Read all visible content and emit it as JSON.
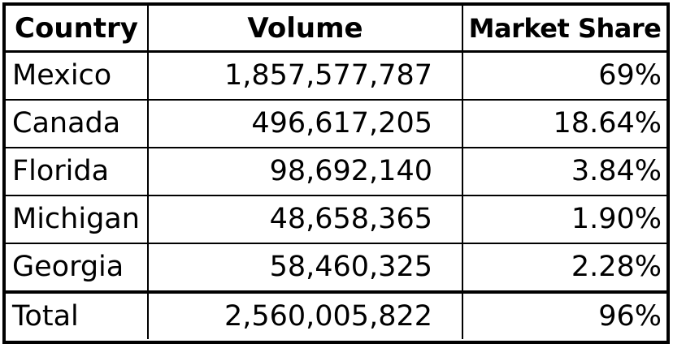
{
  "table": {
    "headers": {
      "country": "Country",
      "volume": "Volume",
      "market_share": "Market Share"
    },
    "rows": [
      {
        "country": "Mexico",
        "volume": "1,857,577,787",
        "market_share": "69%"
      },
      {
        "country": "Canada",
        "volume": "496,617,205",
        "market_share": "18.64%"
      },
      {
        "country": "Florida",
        "volume": "98,692,140",
        "market_share": "3.84%"
      },
      {
        "country": "Michigan",
        "volume": "48,658,365",
        "market_share": "1.90%"
      },
      {
        "country": "Georgia",
        "volume": "58,460,325",
        "market_share": "2.28%"
      }
    ],
    "total": {
      "label": "Total",
      "volume": "2,560,005,822",
      "market_share": "96%"
    }
  }
}
